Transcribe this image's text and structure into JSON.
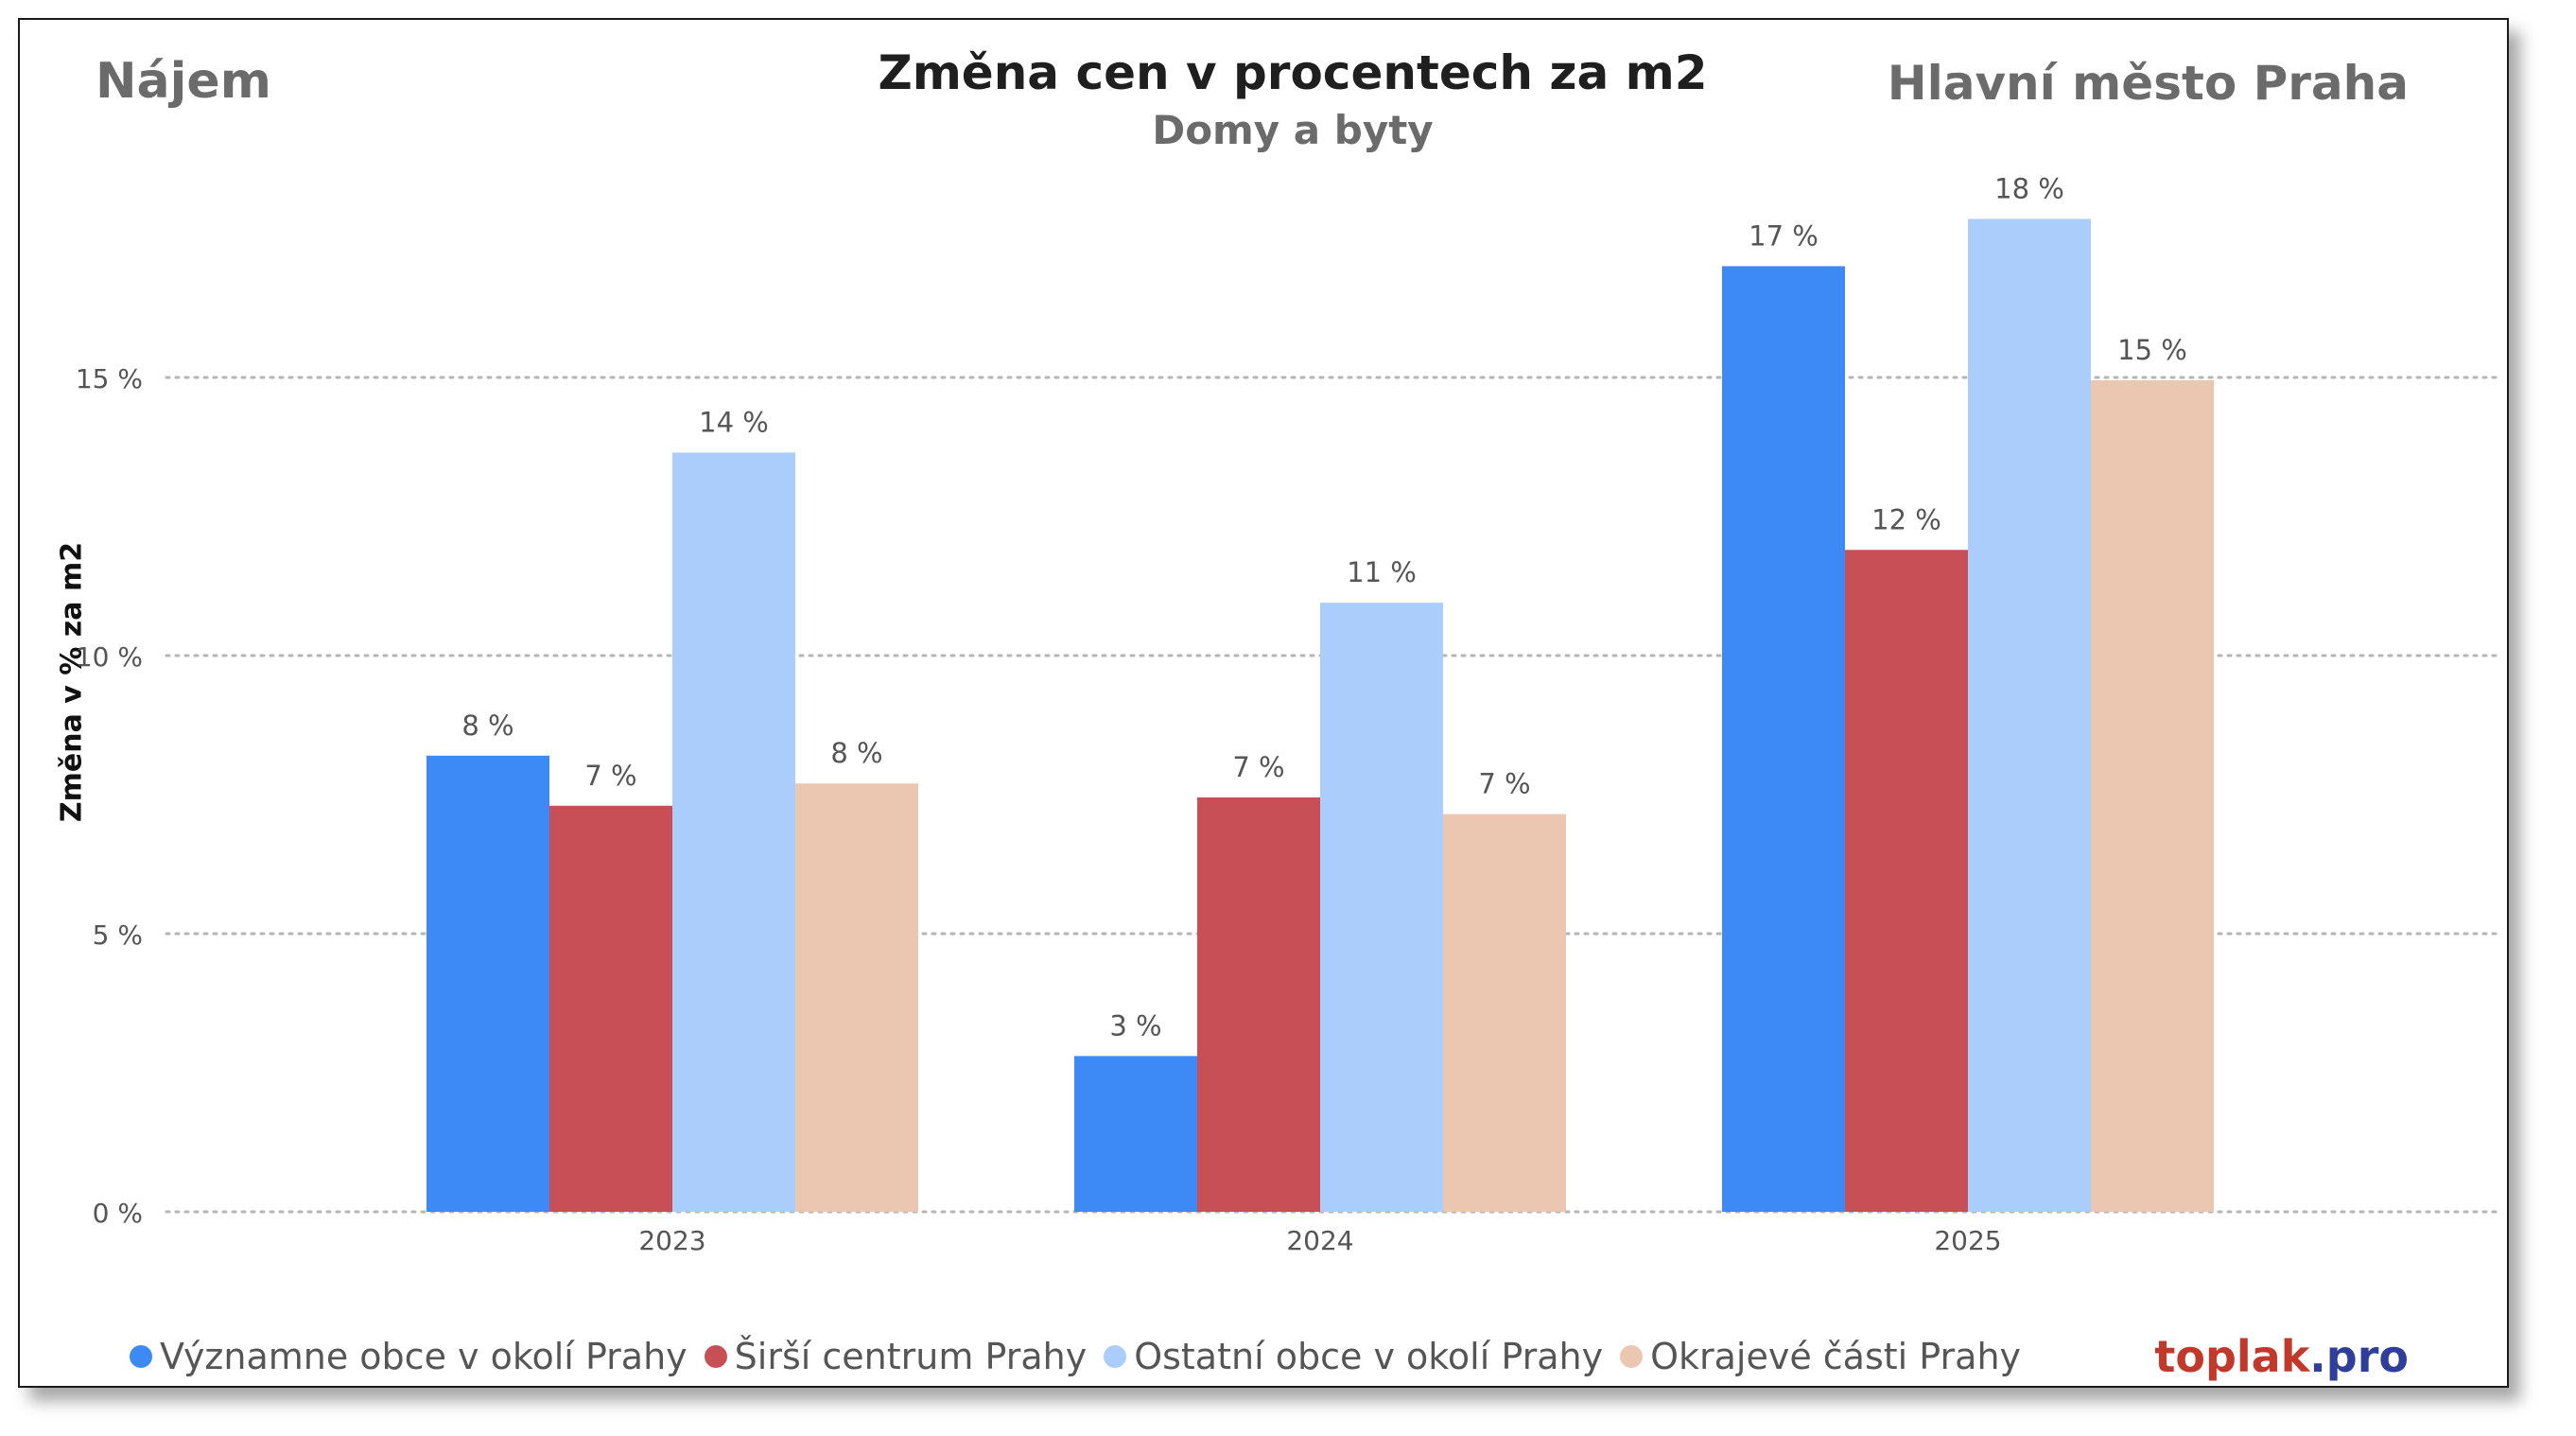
{
  "header": {
    "left": "Nájem",
    "title": "Změna cen v procentech za m2",
    "subtitle": "Domy a byty",
    "right": "Hlavní město Praha"
  },
  "brand": {
    "part1": "toplak",
    "part2": ".pro"
  },
  "chart_data": {
    "type": "bar",
    "ylabel": "Změna v % za m2",
    "xlabel": "",
    "ylim": [
      0,
      19
    ],
    "yticks": [
      0,
      5,
      10,
      15
    ],
    "ytick_labels": [
      "0 %",
      "5 %",
      "10 %",
      "15 %"
    ],
    "grid": "horizontal-dotted",
    "legend_position": "bottom",
    "categories": [
      "2023",
      "2024",
      "2025"
    ],
    "series": [
      {
        "name": "Významne obce v okolí Prahy",
        "color": "#3d8af7",
        "values": [
          8.2,
          2.8,
          17.0
        ],
        "labels": [
          "8 %",
          "3 %",
          "17 %"
        ]
      },
      {
        "name": "Širší centrum Prahy",
        "color": "#c84f55",
        "values": [
          7.3,
          7.45,
          11.9
        ],
        "labels": [
          "7 %",
          "7 %",
          "12 %"
        ]
      },
      {
        "name": "Ostatní obce v okolí Prahy",
        "color": "#aacdfb",
        "values": [
          13.65,
          10.95,
          17.85
        ],
        "labels": [
          "14 %",
          "11 %",
          "18 %"
        ]
      },
      {
        "name": "Okrajevé části Prahy",
        "color": "#ebc6b1",
        "values": [
          7.7,
          7.15,
          14.95
        ],
        "labels": [
          "8 %",
          "7 %",
          "15 %"
        ]
      }
    ]
  }
}
